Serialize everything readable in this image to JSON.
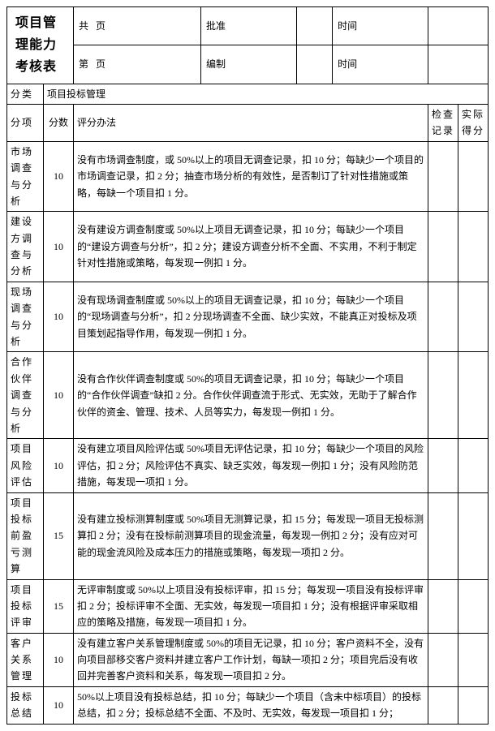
{
  "title": "项目管理能力考核表",
  "header_top": {
    "pages_total_prefix": "共",
    "pages_total_suffix": "页",
    "approve": "批准",
    "time1": "时间",
    "pages_num_prefix": "第",
    "pages_num_suffix": "页",
    "compile": "编制",
    "time2": "时间"
  },
  "labels": {
    "category": "分类",
    "category_value": "项目投标管理",
    "sub_item": "分项",
    "score": "分数",
    "method": "评分办法",
    "check_record": "检查记录",
    "actual_score": "实际得分"
  },
  "rows": [
    {
      "name": "市场调查与分析",
      "score": "10",
      "method": "没有市场调查制度，或 50%以上的项目无调查记录，扣 10 分；每缺少一个项目的市场调查记录，扣 2 分；抽查市场分析的有效性，是否制订了针对性措施或策略，每缺一个项目扣 1 分。"
    },
    {
      "name": "建设方调查与分析",
      "score": "10",
      "method": "没有建设方调查制度或 50%以上项目无调查记录，扣 10 分；每缺少一个项目的“建设方调查与分析”，扣 2 分；建设方调查分析不全面、不实用，不利于制定针对性措施或策略，每发现一例扣 1 分。"
    },
    {
      "name": "现场调查与分析",
      "score": "10",
      "method": "没有现场调查制度或 50%以上的项目无调查记录，扣 10 分；每缺少一个项目的“现场调查与分析”，扣 2 分现场调查不全面、缺少实效，不能真正对投标及项目策划起指导作用，每发现一例扣 1 分。"
    },
    {
      "name": "合作伙伴调查与分析",
      "score": "10",
      "method": "没有合作伙伴调查制度或 50%的项目无调查记录，扣 10 分；每缺少一个项目的“合作伙伴调查”缺扣 2 分。合作伙伴调查流于形式、无实效，无助于了解合作伙伴的资金、管理、技术、人员等实力，每发现一例扣 1 分。"
    },
    {
      "name": "项目风险评估",
      "score": "10",
      "method": "没有建立项目风险评估或 50%项目无评估记录，扣 10 分；每缺少一个项目的风险评估，扣 2 分；风险评估不真实、缺乏实效，每发现一例扣 1 分；没有风险防范措施，每发现一项扣 1 分。"
    },
    {
      "name": "项目投标前盈亏测算",
      "score": "15",
      "method": "没有建立投标测算制度或 50%项目无测算记录，扣 15 分；每发现一项目无投标测算扣 2 分；没有在投标前测算项目的现金流量，每发现一例扣 2 分；没有应对可能的现金流风险及成本压力的措施或策略，每发现一项扣 2 分。"
    },
    {
      "name": "项目投标评审",
      "score": "15",
      "method": "无评审制度或 50%以上项目没有投标评审，扣 15 分；每发现一项目没有投标评审扣 2 分；投标评审不全面、无实效，每发现一项目扣 1 分；没有根据评审采取相应的策略及措施，每发现一项目扣 1 分。"
    },
    {
      "name": "客户关系管理",
      "score": "10",
      "method": "没有建立客户关系管理制度或 50%的项目无记录，扣 10 分；客户资料不全，没有向项目部移交客户资料并建立客户工作计划，每缺一项扣 2 分；项目完后没有收回并完善客户资料和关系，每发现一项目扣 2 分。"
    },
    {
      "name": "投标总结",
      "score": "10",
      "method": "50%以上项目没有投标总结，扣 10 分；每缺少一个项目（含未中标项目）的投标总结，扣 2 分；投标总结不全面、不及时、无实效，每发现一项目扣 1 分；"
    }
  ]
}
